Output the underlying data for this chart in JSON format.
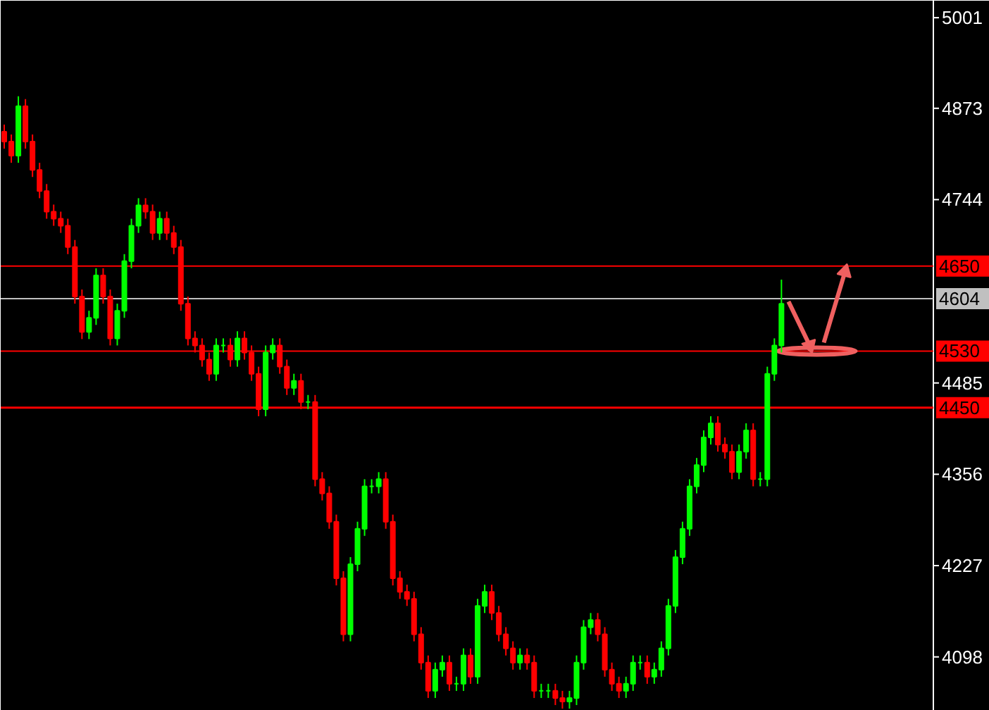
{
  "chart_data": {
    "type": "candlestick",
    "categories": [
      null,
      null,
      null,
      null,
      null,
      null,
      null,
      null,
      null,
      null,
      null,
      null,
      null,
      null,
      null,
      null,
      null,
      null,
      null,
      null,
      null,
      null,
      null,
      null,
      null,
      null,
      null,
      null,
      null,
      null,
      null,
      null,
      null,
      null,
      null,
      null,
      null,
      null,
      null,
      null,
      null,
      null,
      null,
      null,
      null,
      null,
      null,
      null,
      null,
      null,
      null,
      null,
      null,
      null,
      null,
      null,
      null,
      null,
      null,
      null,
      null,
      null,
      null,
      null,
      null,
      null,
      null,
      null,
      null,
      null,
      null,
      null,
      null,
      null,
      null,
      null,
      null,
      null,
      null,
      null,
      null,
      null,
      null,
      null,
      null,
      null,
      null,
      null,
      null,
      null,
      null,
      null,
      null,
      null,
      null,
      null,
      null,
      null,
      null,
      null,
      null,
      null,
      null,
      null,
      null,
      null,
      null,
      null,
      null,
      null,
      null,
      null,
      null,
      null,
      null,
      null,
      null,
      null,
      null,
      null,
      null,
      null,
      null,
      null,
      null,
      null,
      null,
      null,
      null,
      null,
      null,
      null
    ],
    "ohlc": [
      [
        4840,
        4850,
        4816,
        4826
      ],
      [
        4826,
        4836,
        4796,
        4806
      ],
      [
        4806,
        4890,
        4796,
        4876
      ],
      [
        4876,
        4886,
        4816,
        4826
      ],
      [
        4826,
        4836,
        4776,
        4786
      ],
      [
        4786,
        4796,
        4746,
        4756
      ],
      [
        4756,
        4766,
        4717,
        4727
      ],
      [
        4727,
        4737,
        4707,
        4717
      ],
      [
        4717,
        4727,
        4697,
        4707
      ],
      [
        4707,
        4717,
        4667,
        4677
      ],
      [
        4677,
        4687,
        4597,
        4607
      ],
      [
        4607,
        4617,
        4547,
        4557
      ],
      [
        4557,
        4587,
        4547,
        4577
      ],
      [
        4577,
        4647,
        4567,
        4637
      ],
      [
        4637,
        4647,
        4597,
        4607
      ],
      [
        4607,
        4617,
        4538,
        4548
      ],
      [
        4548,
        4597,
        4538,
        4587
      ],
      [
        4587,
        4667,
        4577,
        4657
      ],
      [
        4657,
        4717,
        4647,
        4707
      ],
      [
        4707,
        4746,
        4697,
        4736
      ],
      [
        4736,
        4746,
        4717,
        4727
      ],
      [
        4727,
        4737,
        4687,
        4697
      ],
      [
        4697,
        4727,
        4687,
        4717
      ],
      [
        4717,
        4727,
        4687,
        4697
      ],
      [
        4697,
        4707,
        4667,
        4677
      ],
      [
        4677,
        4687,
        4587,
        4597
      ],
      [
        4597,
        4607,
        4538,
        4548
      ],
      [
        4548,
        4558,
        4528,
        4538
      ],
      [
        4538,
        4548,
        4508,
        4518
      ],
      [
        4518,
        4528,
        4488,
        4498
      ],
      [
        4498,
        4548,
        4488,
        4538
      ],
      [
        4538,
        4548,
        4528,
        4538
      ],
      [
        4538,
        4548,
        4508,
        4518
      ],
      [
        4518,
        4558,
        4508,
        4548
      ],
      [
        4548,
        4558,
        4518,
        4528
      ],
      [
        4528,
        4538,
        4488,
        4498
      ],
      [
        4498,
        4508,
        4438,
        4448
      ],
      [
        4448,
        4538,
        4438,
        4528
      ],
      [
        4528,
        4548,
        4518,
        4538
      ],
      [
        4538,
        4548,
        4498,
        4508
      ],
      [
        4508,
        4518,
        4468,
        4478
      ],
      [
        4478,
        4498,
        4468,
        4488
      ],
      [
        4488,
        4498,
        4448,
        4458
      ],
      [
        4458,
        4468,
        4448,
        4458
      ],
      [
        4458,
        4468,
        4339,
        4349
      ],
      [
        4349,
        4359,
        4319,
        4329
      ],
      [
        4329,
        4339,
        4279,
        4289
      ],
      [
        4289,
        4299,
        4199,
        4209
      ],
      [
        4209,
        4219,
        4120,
        4130
      ],
      [
        4130,
        4239,
        4120,
        4229
      ],
      [
        4229,
        4289,
        4219,
        4279
      ],
      [
        4279,
        4349,
        4269,
        4339
      ],
      [
        4339,
        4349,
        4329,
        4339
      ],
      [
        4339,
        4359,
        4329,
        4349
      ],
      [
        4349,
        4359,
        4279,
        4289
      ],
      [
        4289,
        4299,
        4199,
        4209
      ],
      [
        4209,
        4219,
        4180,
        4190
      ],
      [
        4190,
        4200,
        4170,
        4180
      ],
      [
        4180,
        4190,
        4120,
        4130
      ],
      [
        4130,
        4140,
        4080,
        4090
      ],
      [
        4090,
        4100,
        4040,
        4050
      ],
      [
        4050,
        4090,
        4040,
        4080
      ],
      [
        4080,
        4100,
        4070,
        4090
      ],
      [
        4090,
        4100,
        4050,
        4060
      ],
      [
        4060,
        4070,
        4050,
        4060
      ],
      [
        4060,
        4110,
        4050,
        4100
      ],
      [
        4100,
        4110,
        4060,
        4070
      ],
      [
        4070,
        4180,
        4060,
        4170
      ],
      [
        4170,
        4200,
        4160,
        4190
      ],
      [
        4190,
        4200,
        4150,
        4160
      ],
      [
        4160,
        4170,
        4120,
        4130
      ],
      [
        4130,
        4140,
        4100,
        4110
      ],
      [
        4110,
        4120,
        4080,
        4090
      ],
      [
        4090,
        4110,
        4080,
        4100
      ],
      [
        4100,
        4110,
        4080,
        4090
      ],
      [
        4090,
        4100,
        4040,
        4050
      ],
      [
        4050,
        4060,
        4040,
        4050
      ],
      [
        4050,
        4060,
        4040,
        4050
      ],
      [
        4050,
        4060,
        4030,
        4040
      ],
      [
        4040,
        4050,
        4025,
        4035
      ],
      [
        4035,
        4050,
        4025,
        4040
      ],
      [
        4040,
        4100,
        4030,
        4090
      ],
      [
        4090,
        4150,
        4080,
        4140
      ],
      [
        4140,
        4160,
        4130,
        4150
      ],
      [
        4150,
        4160,
        4120,
        4130
      ],
      [
        4130,
        4140,
        4070,
        4080
      ],
      [
        4080,
        4090,
        4050,
        4060
      ],
      [
        4060,
        4070,
        4040,
        4050
      ],
      [
        4050,
        4070,
        4040,
        4060
      ],
      [
        4060,
        4100,
        4050,
        4090
      ],
      [
        4090,
        4100,
        4080,
        4090
      ],
      [
        4090,
        4100,
        4060,
        4070
      ],
      [
        4070,
        4090,
        4060,
        4080
      ],
      [
        4080,
        4120,
        4070,
        4110
      ],
      [
        4110,
        4180,
        4100,
        4170
      ],
      [
        4170,
        4249,
        4160,
        4239
      ],
      [
        4239,
        4289,
        4229,
        4279
      ],
      [
        4279,
        4349,
        4269,
        4339
      ],
      [
        4339,
        4379,
        4329,
        4369
      ],
      [
        4369,
        4418,
        4359,
        4408
      ],
      [
        4408,
        4438,
        4398,
        4428
      ],
      [
        4428,
        4438,
        4388,
        4398
      ],
      [
        4398,
        4408,
        4378,
        4388
      ],
      [
        4388,
        4398,
        4349,
        4359
      ],
      [
        4359,
        4398,
        4349,
        4388
      ],
      [
        4388,
        4428,
        4378,
        4418
      ],
      [
        4418,
        4428,
        4339,
        4349
      ],
      [
        4349,
        4359,
        4339,
        4349
      ],
      [
        4349,
        4508,
        4339,
        4498
      ],
      [
        4498,
        4548,
        4488,
        4538
      ],
      [
        4538,
        4631,
        4528,
        4597
      ],
      null,
      null,
      null,
      null,
      null,
      null,
      null,
      null,
      null,
      null,
      null,
      null,
      null,
      null,
      null,
      null,
      null,
      null,
      null,
      null,
      null
    ],
    "colors": [
      "#ff0000",
      "#ff0000",
      "#00ff00",
      "#ff0000",
      "#ff0000",
      "#ff0000",
      "#ff0000",
      "#ff0000",
      "#ff0000",
      "#ff0000",
      "#ff0000",
      "#ff0000",
      "#00ff00",
      "#00ff00",
      "#ff0000",
      "#ff0000",
      "#00ff00",
      "#00ff00",
      "#00ff00",
      "#00ff00",
      "#ff0000",
      "#ff0000",
      "#00ff00",
      "#ff0000",
      "#ff0000",
      "#ff0000",
      "#ff0000",
      "#ff0000",
      "#ff0000",
      "#ff0000",
      "#00ff00",
      "#00ff00",
      "#ff0000",
      "#00ff00",
      "#ff0000",
      "#ff0000",
      "#ff0000",
      "#00ff00",
      "#00ff00",
      "#ff0000",
      "#ff0000",
      "#00ff00",
      "#ff0000",
      "#00ff00",
      "#ff0000",
      "#ff0000",
      "#ff0000",
      "#ff0000",
      "#ff0000",
      "#00ff00",
      "#00ff00",
      "#00ff00",
      "#00ff00",
      "#00ff00",
      "#ff0000",
      "#ff0000",
      "#ff0000",
      "#ff0000",
      "#ff0000",
      "#ff0000",
      "#ff0000",
      "#00ff00",
      "#00ff00",
      "#ff0000",
      "#00ff00",
      "#00ff00",
      "#ff0000",
      "#00ff00",
      "#00ff00",
      "#ff0000",
      "#ff0000",
      "#ff0000",
      "#ff0000",
      "#00ff00",
      "#ff0000",
      "#ff0000",
      "#00ff00",
      "#00ff00",
      "#ff0000",
      "#ff0000",
      "#00ff00",
      "#00ff00",
      "#00ff00",
      "#00ff00",
      "#ff0000",
      "#ff0000",
      "#ff0000",
      "#ff0000",
      "#00ff00",
      "#00ff00",
      "#00ff00",
      "#ff0000",
      "#00ff00",
      "#00ff00",
      "#00ff00",
      "#00ff00",
      "#00ff00",
      "#00ff00",
      "#00ff00",
      "#00ff00",
      "#00ff00",
      "#ff0000",
      "#ff0000",
      "#ff0000",
      "#00ff00",
      "#00ff00",
      "#ff0000",
      "#00ff00",
      "#00ff00",
      "#00ff00",
      "#00ff00",
      null,
      null,
      null,
      null,
      null,
      null,
      null,
      null,
      null,
      null,
      null,
      null,
      null,
      null,
      null,
      null,
      null,
      null,
      null,
      null,
      null
    ],
    "ylim": [
      4022,
      5025
    ],
    "yticks": [
      4098,
      4227,
      4356,
      4485,
      4744,
      4873,
      5001
    ],
    "ref_lines": [
      {
        "axis": "y",
        "value": 4650,
        "label": "4650",
        "color": "#ff0000"
      },
      {
        "axis": "y",
        "value": 4604,
        "label": "4604",
        "color": "#c0c0c0"
      },
      {
        "axis": "y",
        "value": 4530,
        "label": "4530",
        "color": "#ff0000"
      },
      {
        "axis": "y",
        "value": 4450,
        "label": "4450",
        "color": "#ff0000"
      }
    ],
    "grid": false
  }
}
